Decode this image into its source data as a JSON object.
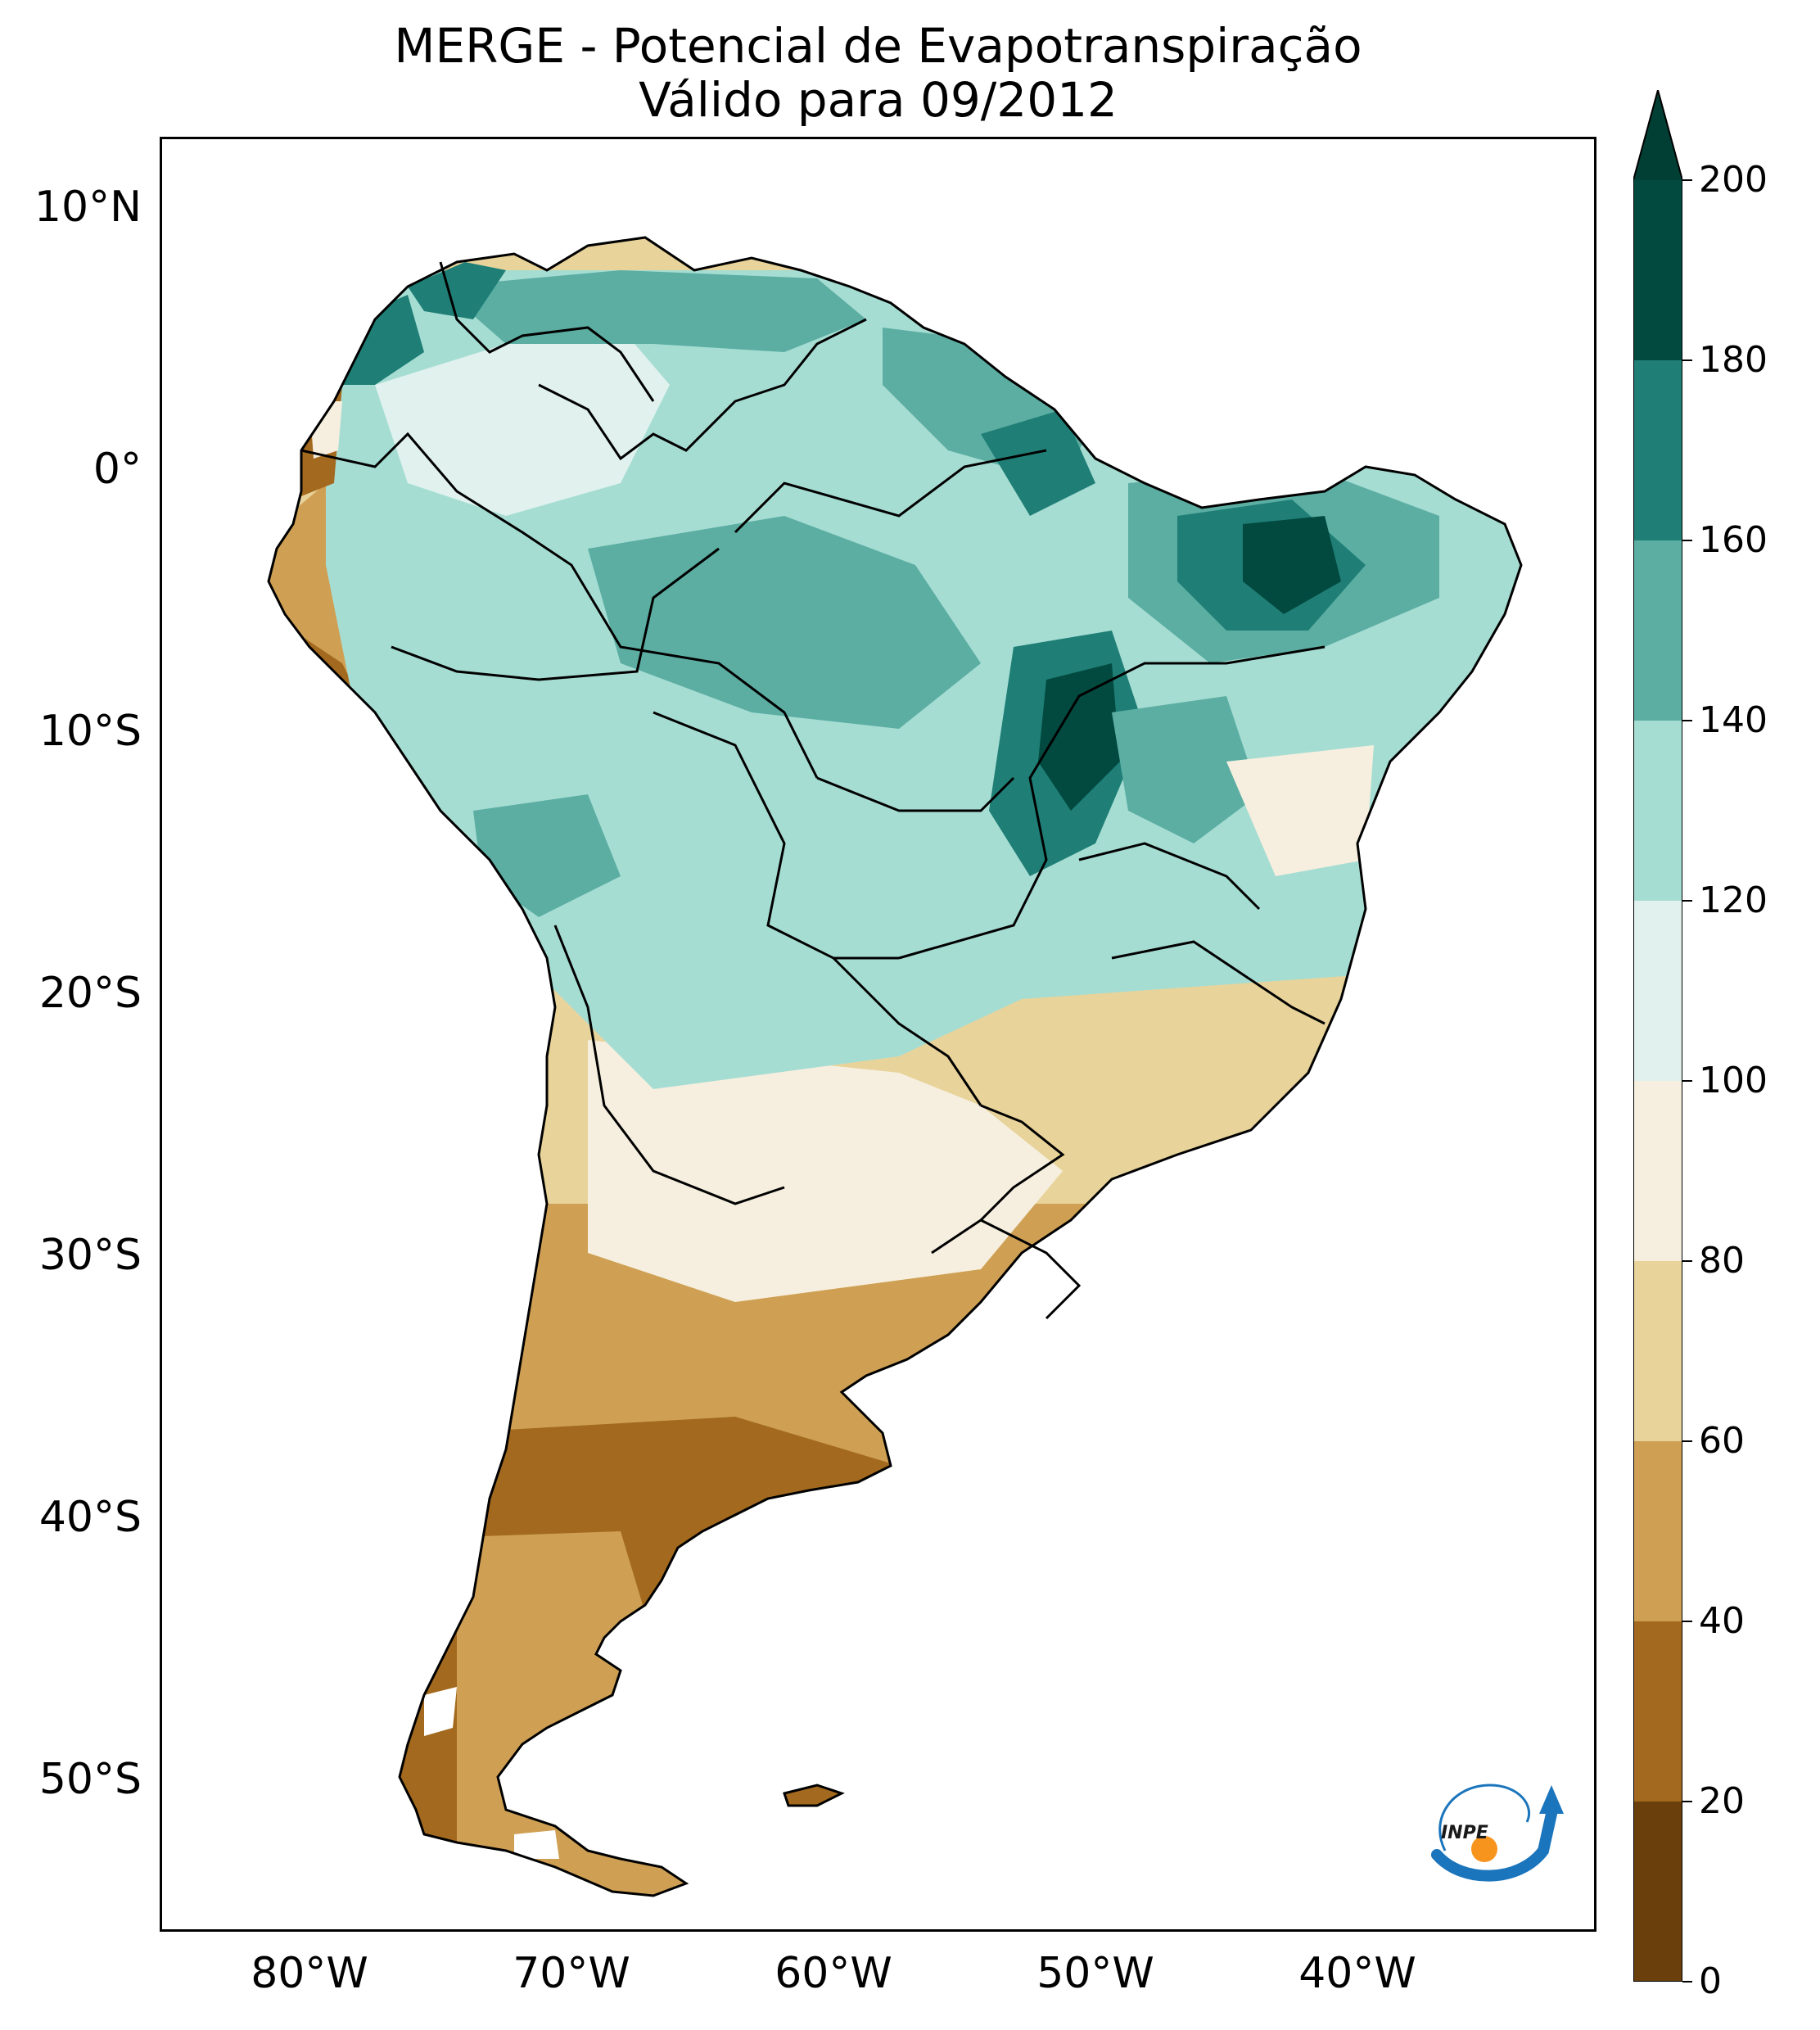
{
  "title": {
    "line1": "MERGE - Potencial de Evapotranspiração",
    "line2": "Válido para 09/2012"
  },
  "map": {
    "lat_labels": [
      "10°N",
      "0°",
      "10°S",
      "20°S",
      "30°S",
      "40°S",
      "50°S"
    ],
    "lon_labels": [
      "80°W",
      "70°W",
      "60°W",
      "50°W",
      "40°W"
    ],
    "logo_text": "INPE"
  },
  "colorbar": {
    "ticks": [
      "0",
      "20",
      "40",
      "60",
      "80",
      "100",
      "120",
      "140",
      "160",
      "180",
      "200"
    ],
    "colors": [
      "#6b3f0c",
      "#a36a1f",
      "#cfa054",
      "#e8d39a",
      "#f6efdf",
      "#e0f1ee",
      "#a6ddd3",
      "#5caea3",
      "#1f7f76",
      "#024a40"
    ],
    "extend_color": "#013f35"
  },
  "colors": {
    "country_border": "#000000",
    "ocean": "#ffffff"
  }
}
